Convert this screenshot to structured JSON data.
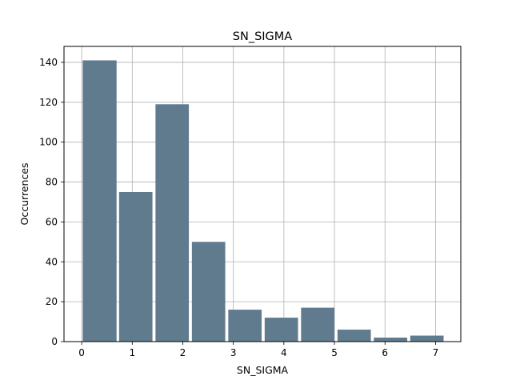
{
  "chart_data": {
    "type": "bar",
    "title": "SN_SIGMA",
    "xlabel": "SN_SIGMA",
    "ylabel": "Occurrences",
    "xlim": [
      -0.35,
      7.5
    ],
    "ylim": [
      0,
      148
    ],
    "xticks": [
      0,
      1,
      2,
      3,
      4,
      5,
      6,
      7
    ],
    "yticks": [
      0,
      20,
      40,
      60,
      80,
      100,
      120,
      140
    ],
    "grid": true,
    "bar_color": "#607b8e",
    "bins": [
      {
        "x0": 0.02,
        "x1": 0.69,
        "value": 141
      },
      {
        "x0": 0.74,
        "x1": 1.4,
        "value": 75
      },
      {
        "x0": 1.46,
        "x1": 2.12,
        "value": 119
      },
      {
        "x0": 2.18,
        "x1": 2.84,
        "value": 50
      },
      {
        "x0": 2.9,
        "x1": 3.56,
        "value": 16
      },
      {
        "x0": 3.62,
        "x1": 4.28,
        "value": 12
      },
      {
        "x0": 4.34,
        "x1": 5.0,
        "value": 17
      },
      {
        "x0": 5.06,
        "x1": 5.72,
        "value": 6
      },
      {
        "x0": 5.78,
        "x1": 6.44,
        "value": 2
      },
      {
        "x0": 6.5,
        "x1": 7.16,
        "value": 3
      }
    ]
  }
}
